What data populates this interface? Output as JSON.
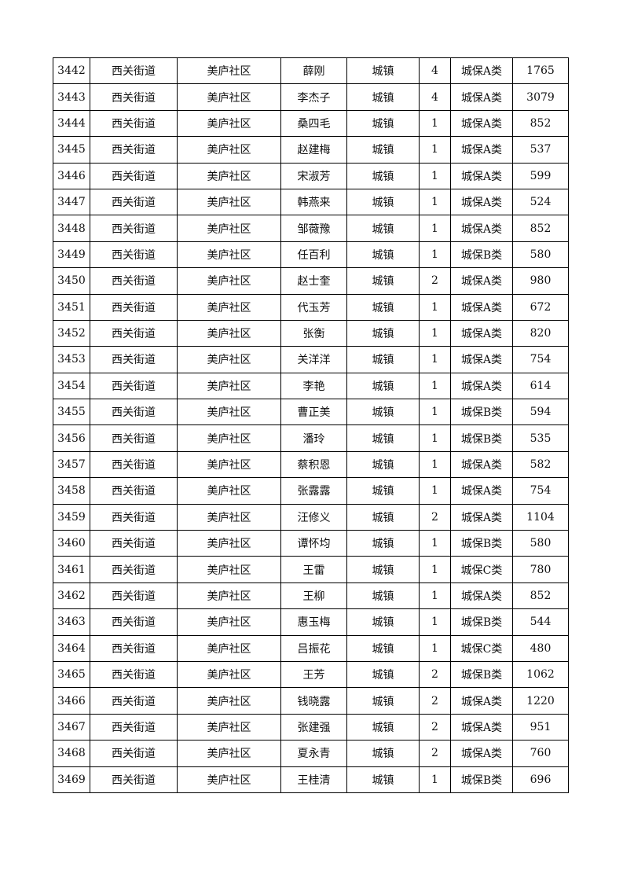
{
  "rows": [
    [
      "3442",
      "西关街道",
      "美庐社区",
      "薛刚",
      "城镇",
      "4",
      "城保A类",
      "1765"
    ],
    [
      "3443",
      "西关街道",
      "美庐社区",
      "李杰子",
      "城镇",
      "4",
      "城保A类",
      "3079"
    ],
    [
      "3444",
      "西关街道",
      "美庐社区",
      "桑四毛",
      "城镇",
      "1",
      "城保A类",
      "852"
    ],
    [
      "3445",
      "西关街道",
      "美庐社区",
      "赵建梅",
      "城镇",
      "1",
      "城保A类",
      "537"
    ],
    [
      "3446",
      "西关街道",
      "美庐社区",
      "宋淑芳",
      "城镇",
      "1",
      "城保A类",
      "599"
    ],
    [
      "3447",
      "西关街道",
      "美庐社区",
      "韩燕来",
      "城镇",
      "1",
      "城保A类",
      "524"
    ],
    [
      "3448",
      "西关街道",
      "美庐社区",
      "邹薇豫",
      "城镇",
      "1",
      "城保A类",
      "852"
    ],
    [
      "3449",
      "西关街道",
      "美庐社区",
      "任百利",
      "城镇",
      "1",
      "城保B类",
      "580"
    ],
    [
      "3450",
      "西关街道",
      "美庐社区",
      "赵士奎",
      "城镇",
      "2",
      "城保A类",
      "980"
    ],
    [
      "3451",
      "西关街道",
      "美庐社区",
      "代玉芳",
      "城镇",
      "1",
      "城保A类",
      "672"
    ],
    [
      "3452",
      "西关街道",
      "美庐社区",
      "张衡",
      "城镇",
      "1",
      "城保A类",
      "820"
    ],
    [
      "3453",
      "西关街道",
      "美庐社区",
      "关洋洋",
      "城镇",
      "1",
      "城保A类",
      "754"
    ],
    [
      "3454",
      "西关街道",
      "美庐社区",
      "李艳",
      "城镇",
      "1",
      "城保A类",
      "614"
    ],
    [
      "3455",
      "西关街道",
      "美庐社区",
      "曹正美",
      "城镇",
      "1",
      "城保B类",
      "594"
    ],
    [
      "3456",
      "西关街道",
      "美庐社区",
      "潘玲",
      "城镇",
      "1",
      "城保B类",
      "535"
    ],
    [
      "3457",
      "西关街道",
      "美庐社区",
      "蔡积恩",
      "城镇",
      "1",
      "城保A类",
      "582"
    ],
    [
      "3458",
      "西关街道",
      "美庐社区",
      "张露露",
      "城镇",
      "1",
      "城保A类",
      "754"
    ],
    [
      "3459",
      "西关街道",
      "美庐社区",
      "汪修义",
      "城镇",
      "2",
      "城保A类",
      "1104"
    ],
    [
      "3460",
      "西关街道",
      "美庐社区",
      "谭怀均",
      "城镇",
      "1",
      "城保B类",
      "580"
    ],
    [
      "3461",
      "西关街道",
      "美庐社区",
      "王雷",
      "城镇",
      "1",
      "城保C类",
      "780"
    ],
    [
      "3462",
      "西关街道",
      "美庐社区",
      "王柳",
      "城镇",
      "1",
      "城保A类",
      "852"
    ],
    [
      "3463",
      "西关街道",
      "美庐社区",
      "惠玉梅",
      "城镇",
      "1",
      "城保B类",
      "544"
    ],
    [
      "3464",
      "西关街道",
      "美庐社区",
      "吕振花",
      "城镇",
      "1",
      "城保C类",
      "480"
    ],
    [
      "3465",
      "西关街道",
      "美庐社区",
      "王芳",
      "城镇",
      "2",
      "城保B类",
      "1062"
    ],
    [
      "3466",
      "西关街道",
      "美庐社区",
      "钱晓露",
      "城镇",
      "2",
      "城保A类",
      "1220"
    ],
    [
      "3467",
      "西关街道",
      "美庐社区",
      "张建强",
      "城镇",
      "2",
      "城保A类",
      "951"
    ],
    [
      "3468",
      "西关街道",
      "美庐社区",
      "夏永青",
      "城镇",
      "2",
      "城保A类",
      "760"
    ],
    [
      "3469",
      "西关街道",
      "美庐社区",
      "王桂清",
      "城镇",
      "1",
      "城保B类",
      "696"
    ]
  ]
}
